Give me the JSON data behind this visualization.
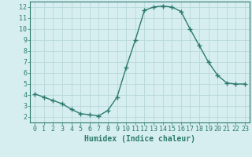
{
  "x": [
    0,
    1,
    2,
    3,
    4,
    5,
    6,
    7,
    8,
    9,
    10,
    11,
    12,
    13,
    14,
    15,
    16,
    17,
    18,
    19,
    20,
    21,
    22,
    23
  ],
  "y": [
    4.1,
    3.8,
    3.5,
    3.2,
    2.7,
    2.3,
    2.2,
    2.1,
    2.6,
    3.8,
    6.5,
    9.0,
    11.7,
    12.0,
    12.1,
    12.0,
    11.6,
    10.0,
    8.5,
    7.0,
    5.8,
    5.1,
    5.0,
    5.0
  ],
  "line_color": "#2d7a6e",
  "marker": "+",
  "marker_size": 4,
  "bg_color": "#d6eef0",
  "grid_color": "#b8d8dc",
  "xlabel": "Humidex (Indice chaleur)",
  "xlim": [
    -0.5,
    23.5
  ],
  "ylim": [
    1.5,
    12.5
  ],
  "xticks": [
    0,
    1,
    2,
    3,
    4,
    5,
    6,
    7,
    8,
    9,
    10,
    11,
    12,
    13,
    14,
    15,
    16,
    17,
    18,
    19,
    20,
    21,
    22,
    23
  ],
  "yticks": [
    2,
    3,
    4,
    5,
    6,
    7,
    8,
    9,
    10,
    11,
    12
  ],
  "xlabel_fontsize": 7,
  "tick_fontsize": 6,
  "line_width": 1.0
}
